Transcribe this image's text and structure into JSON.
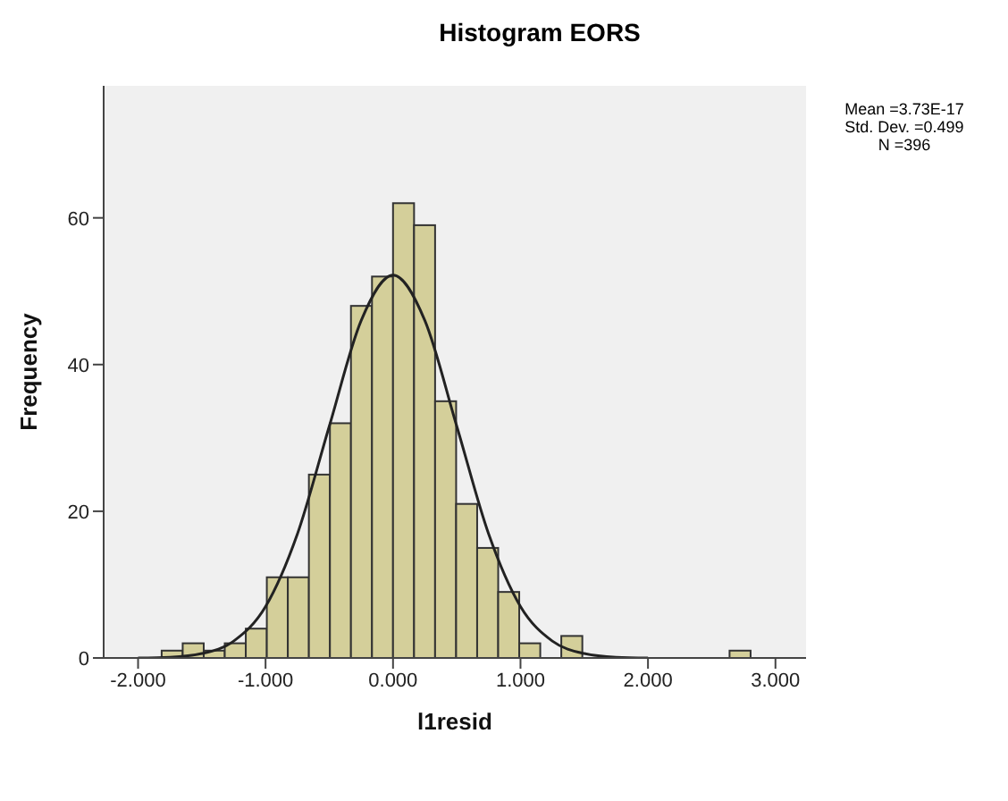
{
  "chart_data": {
    "type": "histogram",
    "title": "Histogram EORS",
    "xlabel": "l1resid",
    "ylabel": "Frequency",
    "bins": [
      -1.815,
      -1.65,
      -1.485,
      -1.32,
      -1.155,
      -0.99,
      -0.825,
      -0.66,
      -0.495,
      -0.33,
      -0.165,
      0,
      0.165,
      0.33,
      0.495,
      0.66,
      0.825,
      0.99,
      1.155,
      1.32,
      1.485,
      1.65,
      1.815,
      1.98,
      2.145,
      2.31,
      2.475,
      2.64,
      2.805
    ],
    "values": [
      1,
      2,
      1,
      2,
      4,
      11,
      11,
      25,
      32,
      48,
      52,
      62,
      59,
      35,
      21,
      15,
      9,
      2,
      0,
      3,
      0,
      0,
      0,
      0,
      0,
      0,
      0,
      1
    ],
    "color": "#d4cf9a",
    "series": [
      {
        "type": "line",
        "color": "#222222",
        "x": [
          -2,
          -1.75,
          -1.5,
          -1.25,
          -1,
          -0.75,
          -0.5,
          -0.25,
          0,
          0.25,
          0.5,
          0.75,
          1,
          1.25,
          1.5,
          1.75,
          2
        ],
        "values": [
          0,
          0.1,
          0.6,
          2.3,
          7,
          16.9,
          31.6,
          46,
          52.2,
          46,
          31.6,
          16.9,
          7,
          2.3,
          0.6,
          0.1,
          0
        ]
      }
    ],
    "xlim": [
      -2.27,
      3.24
    ],
    "ylim": [
      0,
      78
    ],
    "xticks": [
      {
        "value": -2,
        "label": "-2.000"
      },
      {
        "value": -1,
        "label": "-1.000"
      },
      {
        "value": 0,
        "label": "0.000"
      },
      {
        "value": 1,
        "label": "1.000"
      },
      {
        "value": 2,
        "label": "2.000"
      },
      {
        "value": 3,
        "label": "3.000"
      }
    ],
    "yticks": [
      0,
      20,
      40,
      60
    ],
    "annotations": [
      "Mean =3.73E-17",
      "Std. Dev. =0.499",
      "N =396"
    ]
  }
}
